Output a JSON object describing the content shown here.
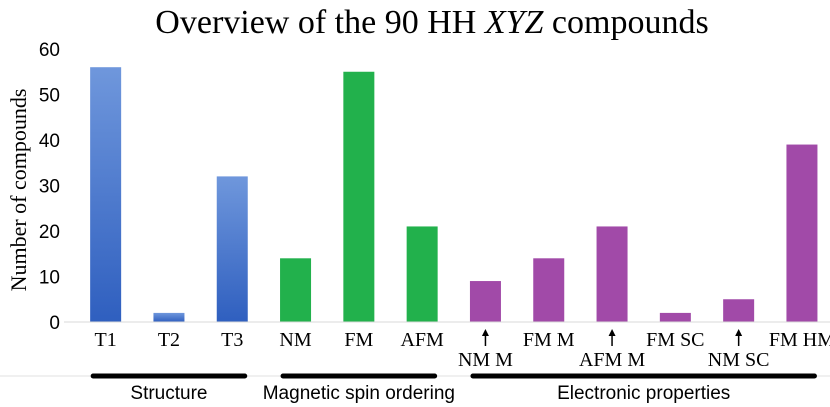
{
  "chart_data": {
    "type": "bar",
    "title_prefix": "Overview of the 90 HH ",
    "title_italic": "XYZ",
    "title_suffix": " compounds",
    "xlabel": "",
    "ylabel": "Number of compounds",
    "ylim": [
      0,
      60
    ],
    "yticks": [
      0,
      10,
      20,
      30,
      40,
      50,
      60
    ],
    "grid": false,
    "categories": [
      "T1",
      "T2",
      "T3",
      "NM",
      "FM",
      "AFM",
      "NM M",
      "FM M",
      "AFM M",
      "FM SC",
      "NM SC",
      "FM HM"
    ],
    "values": [
      56,
      2,
      32,
      14,
      55,
      21,
      9,
      14,
      21,
      2,
      5,
      39
    ],
    "bar_colors": [
      "#3a6fd6",
      "#3a6fd6",
      "#3a6fd6",
      "#22b14c",
      "#22b14c",
      "#22b14c",
      "#a14aa8",
      "#a14aa8",
      "#a14aa8",
      "#a14aa8",
      "#a14aa8",
      "#a14aa8"
    ],
    "label_row": [
      "upper",
      "upper",
      "upper",
      "upper",
      "upper",
      "upper",
      "lower",
      "upper",
      "lower",
      "upper",
      "lower",
      "upper"
    ],
    "groups": [
      {
        "name": "Structure",
        "first": 0,
        "last": 2
      },
      {
        "name": "Magnetic spin ordering",
        "first": 3,
        "last": 5
      },
      {
        "name": "Electronic properties",
        "first": 6,
        "last": 11
      }
    ]
  }
}
